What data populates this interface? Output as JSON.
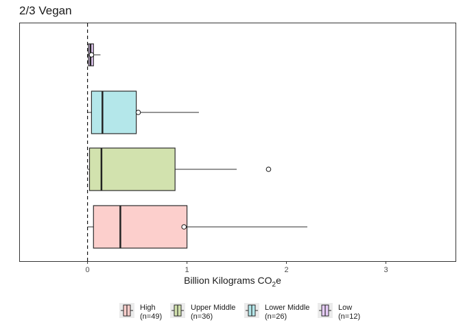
{
  "chart_data": {
    "type": "boxplot",
    "orientation": "horizontal",
    "title": "2/3 Vegan",
    "xlabel": "Billion Kilograms CO",
    "xlabel_subscript": "2",
    "xlabel_suffix": "e",
    "xlim": [
      -0.68,
      3.7
    ],
    "xticks": [
      0,
      1,
      2,
      3
    ],
    "reference_line_x": 0,
    "grid": false,
    "legend_position": "bottom",
    "series": [
      {
        "name": "High",
        "n_label": "(n=49)",
        "color": "#fccfcc",
        "whisker_low": 0,
        "q1": 0.06,
        "median": 0.33,
        "q3": 1.0,
        "whisker_high": 2.21,
        "mean": 0.97,
        "outliers": []
      },
      {
        "name": "Upper Middle",
        "n_label": "(n=36)",
        "color": "#d2e2ae",
        "whisker_low": 0,
        "q1": 0.02,
        "median": 0.14,
        "q3": 0.88,
        "whisker_high": 1.5,
        "mean": null,
        "outliers": [
          1.82
        ]
      },
      {
        "name": "Lower Middle",
        "n_label": "(n=26)",
        "color": "#b4e7ea",
        "whisker_low": 0,
        "q1": 0.04,
        "median": 0.15,
        "q3": 0.49,
        "whisker_high": 1.12,
        "mean": 0.51,
        "outliers": []
      },
      {
        "name": "Low",
        "n_label": "(n=12)",
        "color": "#e6ccf7",
        "whisker_low": 0,
        "q1": 0.01,
        "median": 0.03,
        "q3": 0.06,
        "whisker_high": 0.13,
        "mean": 0.04,
        "outliers": []
      }
    ]
  }
}
